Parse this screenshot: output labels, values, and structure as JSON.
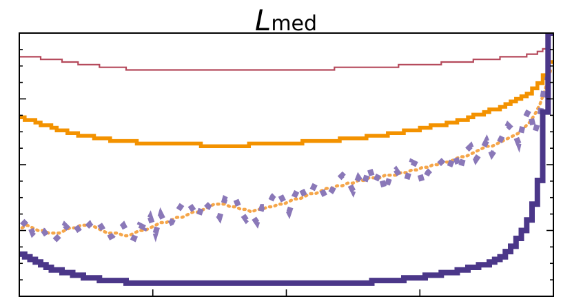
{
  "chart_data": {
    "type": "line",
    "title": "L",
    "title_subscript": "med",
    "xlabel": "",
    "ylabel": "",
    "xlim": [
      0,
      100
    ],
    "ylim": [
      0,
      100
    ],
    "grid": false,
    "legend": "none",
    "series": [
      {
        "style": "thin-step",
        "color": "#b5495b",
        "values": [
          91,
          91,
          91,
          91,
          90,
          90,
          90,
          90,
          89,
          89,
          89,
          88,
          88,
          88,
          88,
          87,
          87,
          87,
          87,
          87,
          86,
          86,
          86,
          86,
          86,
          86,
          86,
          86,
          86,
          86,
          86,
          86,
          86,
          86,
          86,
          86,
          86,
          86,
          86,
          86,
          86,
          86,
          86,
          86,
          86,
          86,
          86,
          86,
          86,
          86,
          86,
          86,
          86,
          86,
          86,
          86,
          86,
          86,
          86,
          87,
          87,
          87,
          87,
          87,
          87,
          87,
          87,
          87,
          87,
          87,
          87,
          88,
          88,
          88,
          88,
          88,
          88,
          88,
          88,
          89,
          89,
          89,
          89,
          89,
          89,
          90,
          90,
          90,
          90,
          90,
          91,
          91,
          91,
          91,
          91,
          92,
          92,
          93,
          94,
          100
        ]
      },
      {
        "style": "thick-step",
        "color": "#f39200",
        "values": [
          68,
          67,
          67,
          66,
          65,
          65,
          64,
          63,
          63,
          62,
          62,
          61,
          61,
          61,
          60,
          60,
          60,
          59,
          59,
          59,
          59,
          59,
          58,
          58,
          58,
          58,
          58,
          58,
          58,
          58,
          58,
          58,
          58,
          58,
          57,
          57,
          57,
          57,
          57,
          57,
          57,
          57,
          57,
          58,
          58,
          58,
          58,
          58,
          58,
          58,
          58,
          58,
          58,
          59,
          59,
          59,
          59,
          59,
          59,
          59,
          60,
          60,
          60,
          60,
          60,
          61,
          61,
          61,
          61,
          62,
          62,
          62,
          63,
          63,
          63,
          64,
          64,
          65,
          65,
          65,
          66,
          66,
          67,
          67,
          68,
          69,
          69,
          70,
          71,
          71,
          72,
          73,
          74,
          75,
          76,
          77,
          79,
          81,
          84,
          89
        ]
      },
      {
        "style": "very-thick-step",
        "color": "#4b3789",
        "values": [
          16,
          15,
          14,
          13,
          12,
          11,
          10,
          10,
          9,
          9,
          8,
          8,
          7,
          7,
          7,
          6,
          6,
          6,
          6,
          6,
          5,
          5,
          5,
          5,
          5,
          5,
          5,
          5,
          5,
          5,
          5,
          5,
          5,
          5,
          5,
          5,
          5,
          5,
          5,
          5,
          5,
          5,
          5,
          5,
          5,
          5,
          5,
          5,
          5,
          5,
          5,
          5,
          5,
          5,
          5,
          5,
          5,
          5,
          5,
          5,
          5,
          5,
          5,
          5,
          5,
          5,
          6,
          6,
          6,
          6,
          6,
          6,
          7,
          7,
          7,
          7,
          8,
          8,
          8,
          9,
          9,
          9,
          10,
          10,
          11,
          11,
          12,
          12,
          13,
          14,
          15,
          17,
          19,
          22,
          25,
          29,
          35,
          44,
          70,
          100
        ]
      },
      {
        "style": "dotted",
        "color": "#f5a64a",
        "values": [
          26,
          27,
          26,
          25,
          25,
          24,
          24,
          24,
          25,
          26,
          26,
          27,
          27,
          27,
          26,
          25,
          24,
          24,
          24,
          23,
          23,
          24,
          25,
          25,
          26,
          27,
          28,
          28,
          29,
          30,
          30,
          31,
          32,
          32,
          33,
          34,
          35,
          35,
          35,
          34,
          34,
          33,
          33,
          32,
          33,
          33,
          34,
          34,
          35,
          35,
          36,
          37,
          37,
          38,
          39,
          39,
          40,
          41,
          41,
          42,
          42,
          43,
          43,
          44,
          44,
          45,
          45,
          45,
          46,
          46,
          46,
          47,
          47,
          48,
          48,
          49,
          49,
          50,
          50,
          51,
          51,
          52,
          53,
          53,
          54,
          55,
          56,
          57,
          57,
          58,
          59,
          60,
          61,
          62,
          64,
          66,
          69,
          73,
          79,
          86
        ]
      },
      {
        "style": "dashed",
        "color": "#8a78b8",
        "values": [
          27,
          29,
          24,
          26,
          25,
          22,
          21,
          23,
          27,
          25,
          27,
          24,
          26,
          28,
          29,
          26,
          22,
          23,
          25,
          27,
          23,
          22,
          27,
          26,
          30,
          24,
          31,
          27,
          28,
          32,
          35,
          36,
          33,
          30,
          36,
          34,
          33,
          30,
          37,
          36,
          37,
          32,
          29,
          31,
          28,
          34,
          34,
          38,
          40,
          36,
          32,
          38,
          42,
          38,
          39,
          43,
          41,
          37,
          40,
          44,
          46,
          44,
          40,
          45,
          42,
          49,
          43,
          47,
          40,
          46,
          48,
          45,
          44,
          51,
          50,
          43,
          47,
          49,
          50,
          52,
          49,
          54,
          48,
          55,
          57,
          52,
          55,
          59,
          54,
          57,
          61,
          65,
          63,
          58,
          67,
          71,
          62,
          69,
          82,
          88
        ]
      }
    ]
  }
}
